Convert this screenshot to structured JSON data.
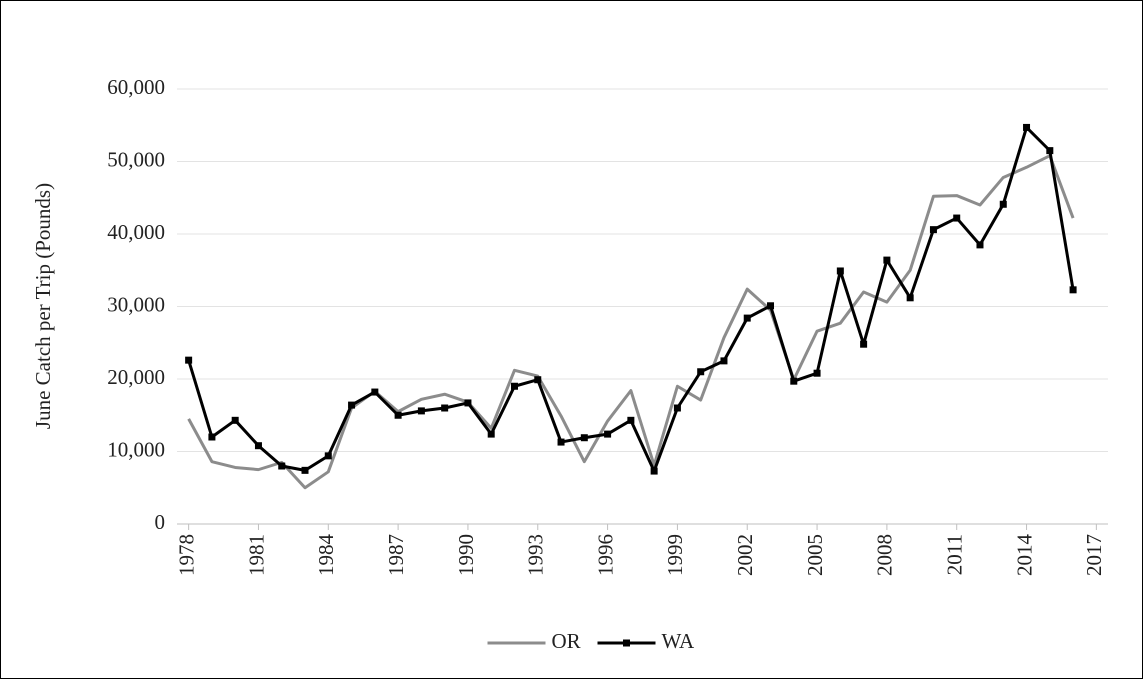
{
  "chart_data": {
    "type": "line",
    "y_label": "June Catch per Trip (Pounds)",
    "x": [
      1978,
      1979,
      1980,
      1981,
      1982,
      1983,
      1984,
      1985,
      1986,
      1987,
      1988,
      1989,
      1990,
      1991,
      1992,
      1993,
      1994,
      1995,
      1996,
      1997,
      1998,
      1999,
      2000,
      2001,
      2002,
      2003,
      2004,
      2005,
      2006,
      2007,
      2008,
      2009,
      2010,
      2011,
      2012,
      2013,
      2014,
      2015,
      2016
    ],
    "series": [
      {
        "name": "OR",
        "color": "#8c8c8c",
        "marker": false,
        "values": [
          14500,
          8600,
          7800,
          7500,
          8500,
          5000,
          7200,
          16000,
          18300,
          15500,
          17200,
          17900,
          16800,
          13200,
          21200,
          20400,
          14900,
          8600,
          14200,
          18400,
          8100,
          19000,
          17100,
          25700,
          32400,
          29500,
          19900,
          26600,
          27700,
          32000,
          30600,
          35000,
          45200,
          45300,
          44000,
          47800,
          49200,
          50800,
          42200
        ]
      },
      {
        "name": "WA",
        "color": "#000000",
        "marker": true,
        "values": [
          22600,
          12000,
          14300,
          10800,
          8000,
          7400,
          9400,
          16400,
          18200,
          15000,
          15600,
          16000,
          16700,
          12400,
          19000,
          19900,
          11300,
          11900,
          12400,
          14300,
          7300,
          16000,
          21000,
          22500,
          28400,
          30100,
          19700,
          20800,
          34900,
          24800,
          36400,
          31200,
          40600,
          42200,
          38500,
          44100,
          54700,
          51500,
          32300
        ]
      }
    ],
    "xlim": [
      1977.5,
      2017.5
    ],
    "xticks": [
      1978,
      1981,
      1984,
      1987,
      1990,
      1993,
      1996,
      1999,
      2002,
      2005,
      2008,
      2011,
      2014,
      2017
    ],
    "ylim": [
      0,
      60000
    ],
    "yticks": [
      0,
      {
        "value": 10000,
        "label": "10,000"
      },
      {
        "value": 20000,
        "label": "20,000"
      },
      {
        "value": 30000,
        "label": "30,000"
      },
      {
        "value": 40000,
        "label": "40,000"
      },
      {
        "value": 50000,
        "label": "50,000"
      },
      {
        "value": 60000,
        "label": "60,000"
      }
    ],
    "grid": true,
    "legend": "bottom"
  }
}
